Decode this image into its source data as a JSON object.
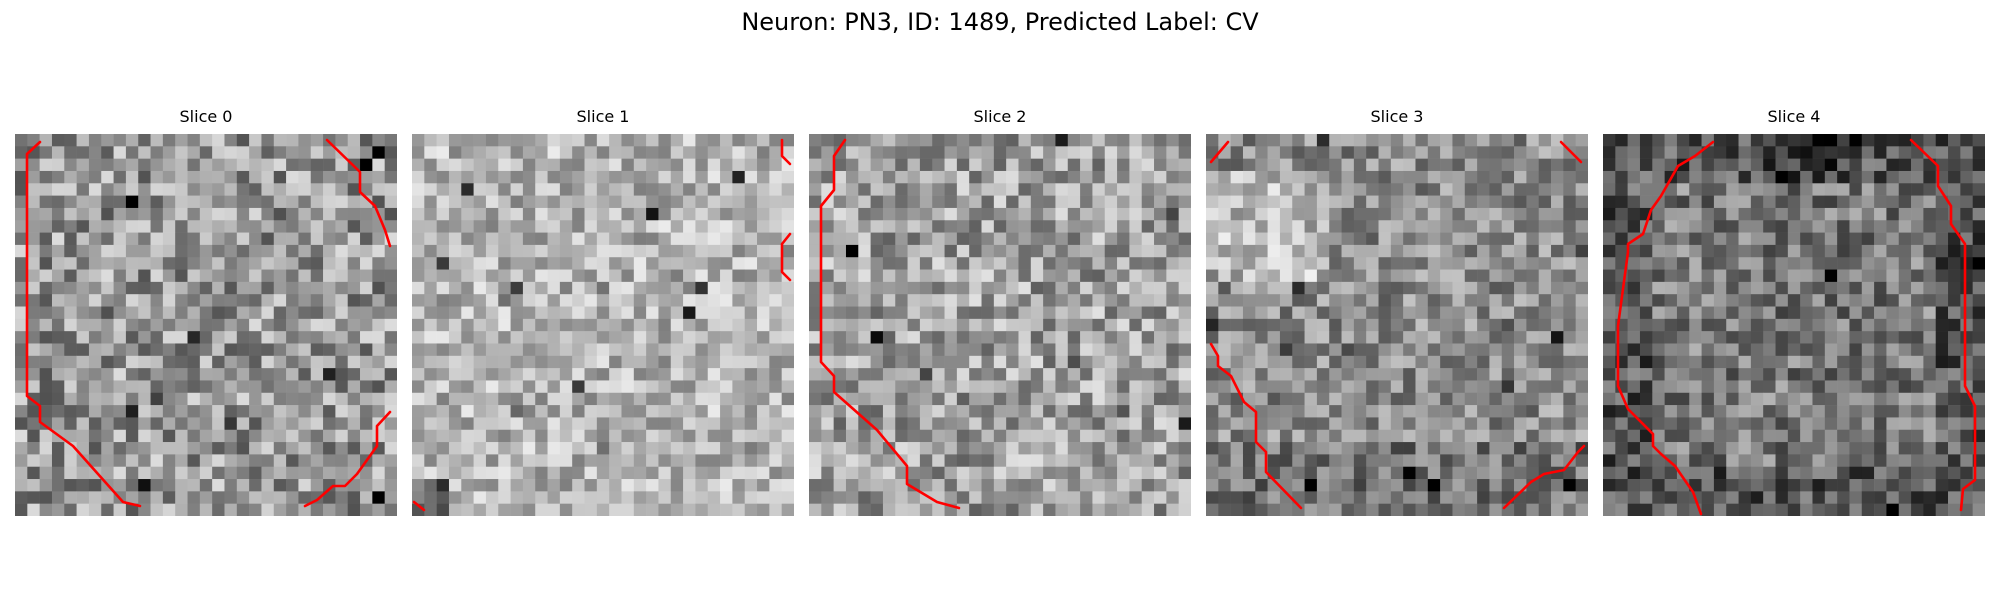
{
  "figure": {
    "title": "Neuron: PN3, ID: 1489, Predicted Label: CV",
    "contour_color": "#ff0000",
    "colormap": "gray"
  },
  "panels": [
    {
      "title": "Slice 0"
    },
    {
      "title": "Slice 1"
    },
    {
      "title": "Slice 2"
    },
    {
      "title": "Slice 3"
    },
    {
      "title": "Slice 4"
    }
  ]
}
